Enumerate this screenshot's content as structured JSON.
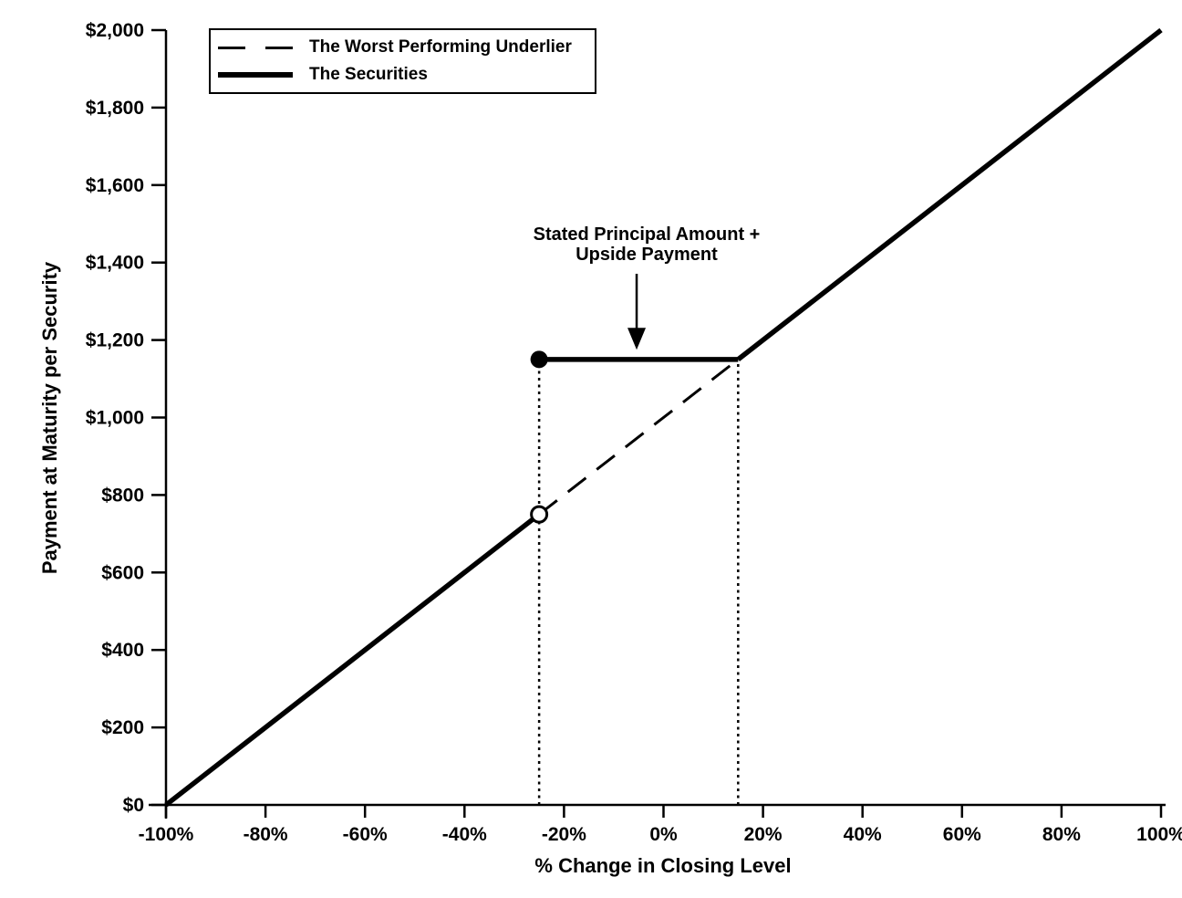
{
  "colors": {
    "foreground": "#000000",
    "background": "#ffffff"
  },
  "chart_data": {
    "type": "line",
    "title": "",
    "xlabel": "% Change in Closing Level",
    "ylabel": "Payment at Maturity per Security",
    "xlim": [
      -100,
      100
    ],
    "ylim": [
      0,
      2000
    ],
    "grid": false,
    "x_ticks": [
      {
        "value": -100,
        "label": "-100%"
      },
      {
        "value": -80,
        "label": "-80%"
      },
      {
        "value": -60,
        "label": "-60%"
      },
      {
        "value": -40,
        "label": "-40%"
      },
      {
        "value": -20,
        "label": "-20%"
      },
      {
        "value": 0,
        "label": "0%"
      },
      {
        "value": 20,
        "label": "20%"
      },
      {
        "value": 40,
        "label": "40%"
      },
      {
        "value": 60,
        "label": "60%"
      },
      {
        "value": 80,
        "label": "80%"
      },
      {
        "value": 100,
        "label": "100%"
      }
    ],
    "y_ticks": [
      {
        "value": 0,
        "label": "$0"
      },
      {
        "value": 200,
        "label": "$200"
      },
      {
        "value": 400,
        "label": "$400"
      },
      {
        "value": 600,
        "label": "$600"
      },
      {
        "value": 800,
        "label": "$800"
      },
      {
        "value": 1000,
        "label": "$1,000"
      },
      {
        "value": 1200,
        "label": "$1,200"
      },
      {
        "value": 1400,
        "label": "$1,400"
      },
      {
        "value": 1600,
        "label": "$1,600"
      },
      {
        "value": 1800,
        "label": "$1,800"
      },
      {
        "value": 2000,
        "label": "$2,000"
      }
    ],
    "legend": {
      "position": "top-left",
      "entries": [
        {
          "label": "The Worst Performing Underlier",
          "style": "dashed"
        },
        {
          "label": "The Securities",
          "style": "solid-thick"
        }
      ]
    },
    "series": [
      {
        "name": "The Worst Performing Underlier",
        "style": "dashed",
        "stroke": "#000000",
        "stroke_width": 3,
        "segments": [
          [
            [
              -25,
              750
            ],
            [
              15,
              1150
            ]
          ]
        ]
      },
      {
        "name": "The Securities",
        "style": "solid",
        "stroke": "#000000",
        "stroke_width": 5.5,
        "segments": [
          [
            [
              -100,
              0
            ],
            [
              -25,
              750
            ]
          ],
          [
            [
              -25,
              1150
            ],
            [
              15,
              1150
            ]
          ],
          [
            [
              15,
              1150
            ],
            [
              100,
              2000
            ]
          ]
        ]
      }
    ],
    "markers": [
      {
        "type": "open-circle",
        "x": -25,
        "y": 750,
        "meaning": "underlier value at downside threshold"
      },
      {
        "type": "filled-circle",
        "x": -25,
        "y": 1150,
        "meaning": "minimum payment above downside threshold"
      }
    ],
    "reference_lines": [
      {
        "style": "dotted-vertical",
        "x": -25,
        "y_from": 0,
        "y_to": 1150
      },
      {
        "style": "dotted-vertical",
        "x": 15,
        "y_from": 0,
        "y_to": 1150
      }
    ],
    "annotation": {
      "line1": "Stated Principal Amount +",
      "line2": "Upside Payment",
      "arrow": {
        "x": -5.4,
        "y_top": 1371,
        "y_tip": 1175
      }
    }
  }
}
